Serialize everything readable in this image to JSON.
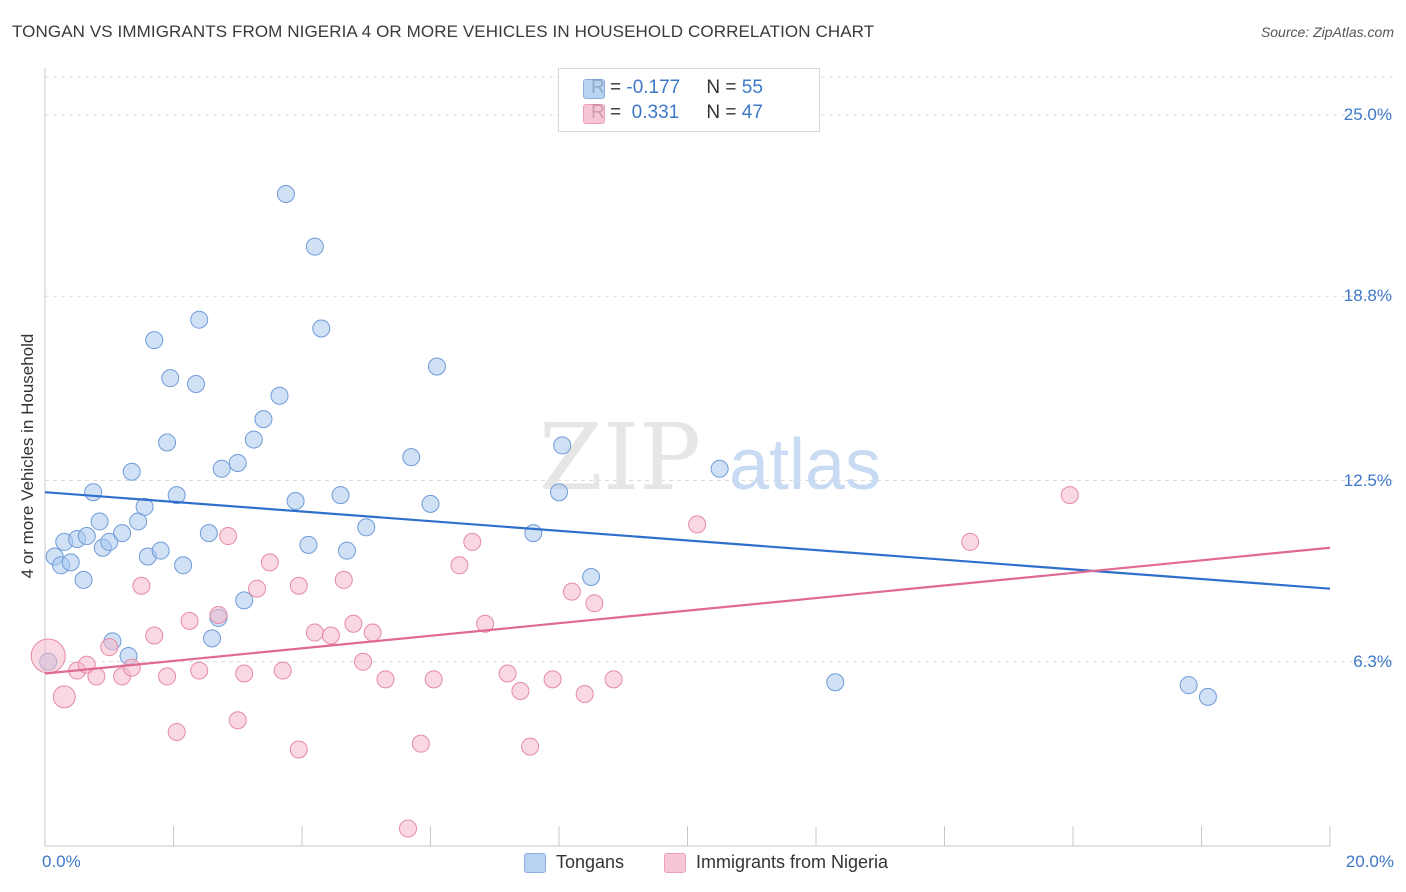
{
  "title": "TONGAN VS IMMIGRANTS FROM NIGERIA 4 OR MORE VEHICLES IN HOUSEHOLD CORRELATION CHART",
  "source": "Source: ZipAtlas.com",
  "watermark": {
    "zip": "ZIP",
    "atlas": "atlas"
  },
  "legend_top": {
    "rows": [
      {
        "r_label": "R = ",
        "r_value": "-0.177",
        "n_label": "N = ",
        "n_value": "55",
        "color": "#a9c8ef"
      },
      {
        "r_label": "R = ",
        "r_value": " 0.331",
        "n_label": "N = ",
        "n_value": "47",
        "color": "#f5b8cb"
      }
    ]
  },
  "chart_data": {
    "type": "scatter",
    "title": "TONGAN VS IMMIGRANTS FROM NIGERIA 4 OR MORE VEHICLES IN HOUSEHOLD CORRELATION CHART",
    "xlabel": "",
    "ylabel": "4 or more Vehicles in Household",
    "xlim": [
      0,
      20
    ],
    "ylim": [
      0,
      26.3
    ],
    "x_tick_labels": [
      {
        "value": 0,
        "label": "0.0%"
      },
      {
        "value": 20,
        "label": "20.0%"
      }
    ],
    "y_tick_labels": [
      {
        "value": 25.0,
        "label": "25.0%"
      },
      {
        "value": 18.8,
        "label": "18.8%"
      },
      {
        "value": 12.5,
        "label": "12.5%"
      },
      {
        "value": 6.3,
        "label": "6.3%"
      }
    ],
    "grid": true,
    "legend_position": "bottom",
    "series": [
      {
        "name": "Tongans",
        "color": "#a9c8ef",
        "edge": "#6f9bd8",
        "line_color": "#2f6fcc",
        "trend": {
          "x": [
            0,
            20
          ],
          "y": [
            12.1,
            8.8
          ]
        },
        "points": [
          [
            0.05,
            6.3
          ],
          [
            0.15,
            9.9
          ],
          [
            0.25,
            9.6
          ],
          [
            0.3,
            10.4
          ],
          [
            0.4,
            9.7
          ],
          [
            0.5,
            10.5
          ],
          [
            0.6,
            9.1
          ],
          [
            0.65,
            10.6
          ],
          [
            0.75,
            12.1
          ],
          [
            0.85,
            11.1
          ],
          [
            0.9,
            10.2
          ],
          [
            1.0,
            10.4
          ],
          [
            1.05,
            7.0
          ],
          [
            1.2,
            10.7
          ],
          [
            1.3,
            6.5
          ],
          [
            1.35,
            12.8
          ],
          [
            1.45,
            11.1
          ],
          [
            1.55,
            11.6
          ],
          [
            1.6,
            9.9
          ],
          [
            1.7,
            17.3
          ],
          [
            1.8,
            10.1
          ],
          [
            1.9,
            13.8
          ],
          [
            1.95,
            16.0
          ],
          [
            2.05,
            12.0
          ],
          [
            2.15,
            9.6
          ],
          [
            2.35,
            15.8
          ],
          [
            2.4,
            18.0
          ],
          [
            2.55,
            10.7
          ],
          [
            2.6,
            7.1
          ],
          [
            2.7,
            7.8
          ],
          [
            2.75,
            12.9
          ],
          [
            3.0,
            13.1
          ],
          [
            3.1,
            8.4
          ],
          [
            3.25,
            13.9
          ],
          [
            3.4,
            14.6
          ],
          [
            3.65,
            15.4
          ],
          [
            3.75,
            22.3
          ],
          [
            3.9,
            11.8
          ],
          [
            4.1,
            10.3
          ],
          [
            4.2,
            20.5
          ],
          [
            4.3,
            17.7
          ],
          [
            4.6,
            12.0
          ],
          [
            4.7,
            10.1
          ],
          [
            5.0,
            10.9
          ],
          [
            5.7,
            13.3
          ],
          [
            6.0,
            11.7
          ],
          [
            6.1,
            16.4
          ],
          [
            7.6,
            10.7
          ],
          [
            8.0,
            12.1
          ],
          [
            8.05,
            13.7
          ],
          [
            8.5,
            9.2
          ],
          [
            10.5,
            12.9
          ],
          [
            12.3,
            5.6
          ],
          [
            17.8,
            5.5
          ],
          [
            18.1,
            5.1
          ]
        ]
      },
      {
        "name": "Immigrants from Nigeria",
        "color": "#f5b8cb",
        "edge": "#e58aa6",
        "line_color": "#e06a94",
        "trend": {
          "x": [
            0,
            20
          ],
          "y": [
            5.9,
            10.2
          ]
        },
        "points": [
          [
            0.05,
            6.5
          ],
          [
            0.3,
            5.1
          ],
          [
            0.5,
            6.0
          ],
          [
            0.65,
            6.2
          ],
          [
            0.8,
            5.8
          ],
          [
            1.0,
            6.8
          ],
          [
            1.2,
            5.8
          ],
          [
            1.35,
            6.1
          ],
          [
            1.5,
            8.9
          ],
          [
            1.7,
            7.2
          ],
          [
            1.9,
            5.8
          ],
          [
            2.05,
            3.9
          ],
          [
            2.25,
            7.7
          ],
          [
            2.4,
            6.0
          ],
          [
            2.7,
            7.9
          ],
          [
            2.85,
            10.6
          ],
          [
            3.0,
            4.3
          ],
          [
            3.1,
            5.9
          ],
          [
            3.3,
            8.8
          ],
          [
            3.5,
            9.7
          ],
          [
            3.7,
            6.0
          ],
          [
            3.95,
            3.3
          ],
          [
            3.95,
            8.9
          ],
          [
            4.2,
            7.3
          ],
          [
            4.45,
            7.2
          ],
          [
            4.65,
            9.1
          ],
          [
            4.8,
            7.6
          ],
          [
            4.95,
            6.3
          ],
          [
            5.1,
            7.3
          ],
          [
            5.3,
            5.7
          ],
          [
            5.65,
            0.6
          ],
          [
            5.85,
            3.5
          ],
          [
            6.05,
            5.7
          ],
          [
            6.45,
            9.6
          ],
          [
            6.65,
            10.4
          ],
          [
            6.85,
            7.6
          ],
          [
            7.2,
            5.9
          ],
          [
            7.4,
            5.3
          ],
          [
            7.55,
            3.4
          ],
          [
            7.9,
            5.7
          ],
          [
            8.2,
            8.7
          ],
          [
            8.4,
            5.2
          ],
          [
            8.55,
            8.3
          ],
          [
            8.85,
            5.7
          ],
          [
            10.15,
            11.0
          ],
          [
            14.4,
            10.4
          ],
          [
            15.95,
            12.0
          ]
        ],
        "large_points": [
          [
            0.05,
            6.5
          ],
          [
            0.3,
            5.1
          ]
        ]
      }
    ]
  },
  "legend_bottom": [
    {
      "label": "Tongans",
      "color": "#a9c8ef",
      "edge": "#6f9bd8"
    },
    {
      "label": "Immigrants from Nigeria",
      "color": "#f5b8cb",
      "edge": "#e58aa6"
    }
  ]
}
